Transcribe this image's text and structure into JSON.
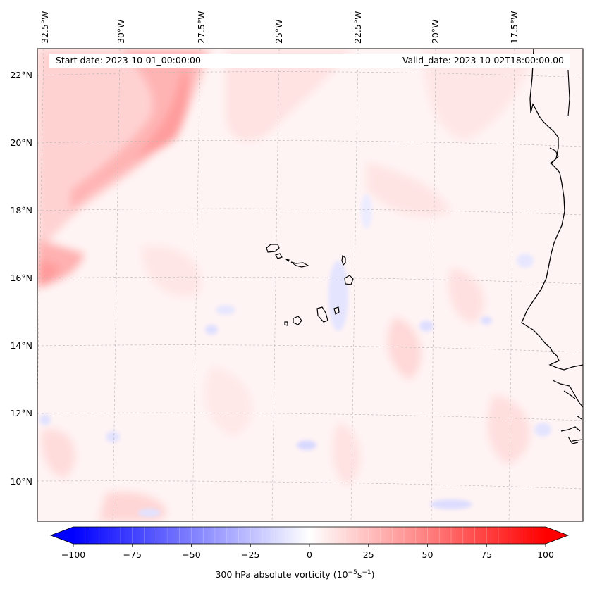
{
  "header": {
    "start_date": "Start date: 2023-10-01_00:00:00",
    "valid_date": "Valid_date: 2023-10-02T18:00:00.00"
  },
  "axes": {
    "lon_labels": [
      "32.5°W",
      "30°W",
      "27.5°W",
      "25°W",
      "22.5°W",
      "20°W",
      "17.5°W"
    ],
    "lat_labels": [
      "22°N",
      "20°N",
      "18°N",
      "16°N",
      "14°N",
      "12°N",
      "10°N"
    ]
  },
  "colorbar": {
    "ticks": [
      "-100",
      "-75",
      "-50",
      "-25",
      "0",
      "25",
      "50",
      "75",
      "100"
    ],
    "tick_values": [
      -100,
      -75,
      -50,
      -25,
      0,
      25,
      50,
      75,
      100
    ],
    "min": -100,
    "max": 100,
    "levels": 40,
    "label_main": "300 hPa absolute vorticity (10",
    "label_exp1": "−5",
    "label_mid": "s",
    "label_exp2": "−1",
    "label_end": ")",
    "low_color": "#0000ff",
    "mid_color": "#ffffff",
    "high_color": "#ff0000"
  },
  "map": {
    "coastline_color": "#000000",
    "grid_color": "#b0b0b0"
  }
}
